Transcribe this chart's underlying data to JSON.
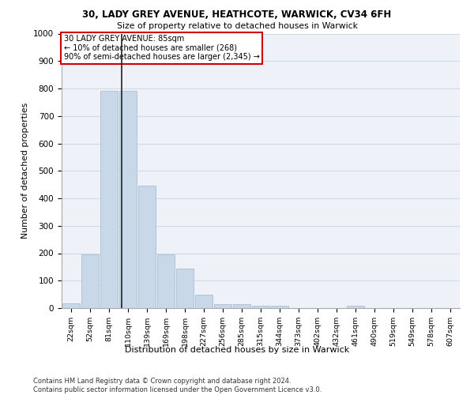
{
  "title1": "30, LADY GREY AVENUE, HEATHCOTE, WARWICK, CV34 6FH",
  "title2": "Size of property relative to detached houses in Warwick",
  "xlabel": "Distribution of detached houses by size in Warwick",
  "ylabel": "Number of detached properties",
  "footnote": "Contains HM Land Registry data © Crown copyright and database right 2024.\nContains public sector information licensed under the Open Government Licence v3.0.",
  "categories": [
    "22sqm",
    "52sqm",
    "81sqm",
    "110sqm",
    "139sqm",
    "169sqm",
    "198sqm",
    "227sqm",
    "256sqm",
    "285sqm",
    "315sqm",
    "344sqm",
    "373sqm",
    "402sqm",
    "432sqm",
    "461sqm",
    "490sqm",
    "519sqm",
    "549sqm",
    "578sqm",
    "607sqm"
  ],
  "values": [
    18,
    195,
    790,
    790,
    445,
    195,
    145,
    50,
    15,
    15,
    10,
    10,
    0,
    0,
    0,
    8,
    0,
    0,
    0,
    0,
    0
  ],
  "bar_color": "#c8d8e8",
  "bar_edge_color": "#a0b8d0",
  "grid_color": "#d0d8e8",
  "background_color": "#eef2f8",
  "vline_x": 2.65,
  "vline_color": "#222222",
  "annotation_text": "30 LADY GREY AVENUE: 85sqm\n← 10% of detached houses are smaller (268)\n90% of semi-detached houses are larger (2,345) →",
  "annotation_box_color": "#cc0000",
  "ylim": [
    0,
    1000
  ],
  "yticks": [
    0,
    100,
    200,
    300,
    400,
    500,
    600,
    700,
    800,
    900,
    1000
  ]
}
